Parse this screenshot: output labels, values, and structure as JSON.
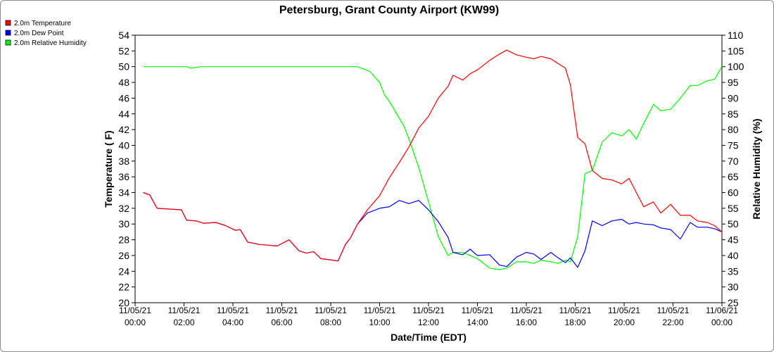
{
  "chart_data": {
    "type": "line",
    "title": "Petersburg, Grant County Airport (KW99)",
    "xlabel": "Date/Time (EDT)",
    "ylabel_left": "Temperature ( F)",
    "ylabel_right": "Relative Humidity (%)",
    "ylim_left": [
      20,
      54
    ],
    "ylim_right": [
      25,
      110
    ],
    "yticks_left": [
      "20",
      "22",
      "24",
      "26",
      "28",
      "30",
      "32",
      "34",
      "36",
      "38",
      "40",
      "42",
      "44",
      "46",
      "48",
      "50",
      "52",
      "54"
    ],
    "yticks_right": [
      "25",
      "30",
      "35",
      "40",
      "45",
      "50",
      "55",
      "60",
      "65",
      "70",
      "75",
      "80",
      "85",
      "90",
      "95",
      "100",
      "105",
      "110"
    ],
    "xlim_hours": [
      0,
      24
    ],
    "x_ticks": [
      {
        "hour": 0,
        "date": "11/05/21",
        "time": "00:00"
      },
      {
        "hour": 2,
        "date": "11/05/21",
        "time": "02:00"
      },
      {
        "hour": 4,
        "date": "11/05/21",
        "time": "04:00"
      },
      {
        "hour": 6,
        "date": "11/05/21",
        "time": "06:00"
      },
      {
        "hour": 8,
        "date": "11/05/21",
        "time": "08:00"
      },
      {
        "hour": 10,
        "date": "11/05/21",
        "time": "10:00"
      },
      {
        "hour": 12,
        "date": "11/05/21",
        "time": "12:00"
      },
      {
        "hour": 14,
        "date": "11/05/21",
        "time": "14:00"
      },
      {
        "hour": 16,
        "date": "11/05/21",
        "time": "16:00"
      },
      {
        "hour": 18,
        "date": "11/05/21",
        "time": "18:00"
      },
      {
        "hour": 20,
        "date": "11/05/21",
        "time": "20:00"
      },
      {
        "hour": 22,
        "date": "11/05/21",
        "time": "22:00"
      },
      {
        "hour": 24,
        "date": "11/06/21",
        "time": "00:00"
      }
    ],
    "legend_position": "top-left",
    "grid": false,
    "series": [
      {
        "name": "2.0m Temperature",
        "color": "#ff0000",
        "axis": "left",
        "x": [
          0.33,
          0.6,
          0.9,
          1.4,
          1.9,
          2.1,
          2.5,
          2.8,
          3.3,
          3.7,
          4.1,
          4.3,
          4.6,
          5.1,
          5.5,
          5.8,
          6.3,
          6.7,
          7.0,
          7.3,
          7.6,
          8.1,
          8.3,
          8.6,
          8.8,
          9.1,
          9.5,
          10.0,
          10.4,
          10.8,
          11.2,
          11.6,
          12.0,
          12.4,
          12.8,
          13.0,
          13.4,
          13.7,
          14.0,
          14.5,
          14.9,
          15.2,
          15.6,
          16.0,
          16.3,
          16.6,
          17.0,
          17.3,
          17.6,
          17.8,
          18.1,
          18.4,
          18.7,
          19.1,
          19.5,
          19.9,
          20.2,
          20.5,
          20.8,
          21.2,
          21.5,
          21.9,
          22.3,
          22.7,
          23.0,
          23.4,
          23.7,
          24.0
        ],
        "values": [
          34.0,
          33.7,
          32.0,
          31.9,
          31.8,
          30.5,
          30.4,
          30.1,
          30.2,
          29.8,
          29.2,
          29.3,
          27.7,
          27.4,
          27.3,
          27.2,
          28.0,
          26.6,
          26.3,
          26.5,
          25.6,
          25.4,
          25.3,
          27.4,
          28.2,
          30.0,
          31.8,
          33.6,
          35.9,
          37.8,
          39.8,
          42.2,
          43.7,
          46.0,
          47.5,
          48.9,
          48.3,
          49.1,
          49.6,
          50.8,
          51.6,
          52.1,
          51.5,
          51.2,
          51.0,
          51.3,
          51.0,
          50.4,
          49.8,
          47.7,
          41.0,
          40.2,
          36.8,
          35.8,
          35.6,
          35.1,
          35.8,
          34.0,
          32.2,
          32.8,
          31.4,
          32.5,
          31.1,
          31.1,
          30.4,
          30.2,
          29.8,
          29.0
        ]
      },
      {
        "name": "2.0m Dew Point",
        "color": "#0000ff",
        "axis": "left",
        "x": [
          0.33,
          0.6,
          0.9,
          1.4,
          1.9,
          2.1,
          2.5,
          2.8,
          3.3,
          3.7,
          4.1,
          4.3,
          4.6,
          5.1,
          5.5,
          5.8,
          6.3,
          6.7,
          7.0,
          7.3,
          7.6,
          8.1,
          8.3,
          8.6,
          8.8,
          9.1,
          9.5,
          10.0,
          10.4,
          10.8,
          11.2,
          11.6,
          12.0,
          12.4,
          12.8,
          13.0,
          13.4,
          13.7,
          14.0,
          14.5,
          14.9,
          15.2,
          15.6,
          16.0,
          16.3,
          16.6,
          17.0,
          17.3,
          17.6,
          17.8,
          18.1,
          18.4,
          18.7,
          19.1,
          19.5,
          19.9,
          20.2,
          20.5,
          20.8,
          21.2,
          21.5,
          21.9,
          22.3,
          22.7,
          23.0,
          23.4,
          23.7,
          24.0
        ],
        "values": [
          34.0,
          33.7,
          32.0,
          31.9,
          31.8,
          30.5,
          30.4,
          30.1,
          30.2,
          29.8,
          29.2,
          29.3,
          27.7,
          27.4,
          27.3,
          27.2,
          28.0,
          26.6,
          26.3,
          26.5,
          25.6,
          25.4,
          25.3,
          27.4,
          28.2,
          30.0,
          31.4,
          32.0,
          32.2,
          33.0,
          32.6,
          33.0,
          31.8,
          30.3,
          28.3,
          26.4,
          26.1,
          26.8,
          26.0,
          26.1,
          24.8,
          24.6,
          25.8,
          26.4,
          26.2,
          25.5,
          26.4,
          25.7,
          25.1,
          25.7,
          24.5,
          26.6,
          30.4,
          29.8,
          30.4,
          30.6,
          30.0,
          30.2,
          30.0,
          29.9,
          29.5,
          29.3,
          28.1,
          30.2,
          29.6,
          29.6,
          29.4,
          29.0
        ]
      },
      {
        "name": "2.0m Relative Humidity",
        "color": "#00ff00",
        "axis": "right",
        "x": [
          0.33,
          1.5,
          2.1,
          2.3,
          2.7,
          3.5,
          5.0,
          6.5,
          8.0,
          9.1,
          9.6,
          10.0,
          10.2,
          10.4,
          10.7,
          11.0,
          11.2,
          11.6,
          12.0,
          12.4,
          12.8,
          13.0,
          13.4,
          13.7,
          14.0,
          14.5,
          14.9,
          15.2,
          15.6,
          16.0,
          16.3,
          16.6,
          17.0,
          17.3,
          17.6,
          17.8,
          18.1,
          18.4,
          18.7,
          19.1,
          19.5,
          19.9,
          20.2,
          20.5,
          20.8,
          21.2,
          21.5,
          21.9,
          22.3,
          22.7,
          23.0,
          23.4,
          23.7,
          24.0
        ],
        "values": [
          100,
          100,
          100,
          99.5,
          100,
          100,
          100,
          100,
          100,
          100,
          98.5,
          95,
          91,
          89,
          85,
          81,
          77,
          68,
          57,
          46,
          40,
          41,
          41,
          40,
          39,
          36,
          35.5,
          36,
          38,
          38,
          37.5,
          38.5,
          38,
          37.5,
          38.5,
          38,
          46,
          66,
          67,
          76,
          79,
          78,
          80,
          77,
          82,
          88,
          86,
          86.5,
          90,
          94,
          94,
          95.5,
          96,
          100
        ]
      }
    ]
  }
}
